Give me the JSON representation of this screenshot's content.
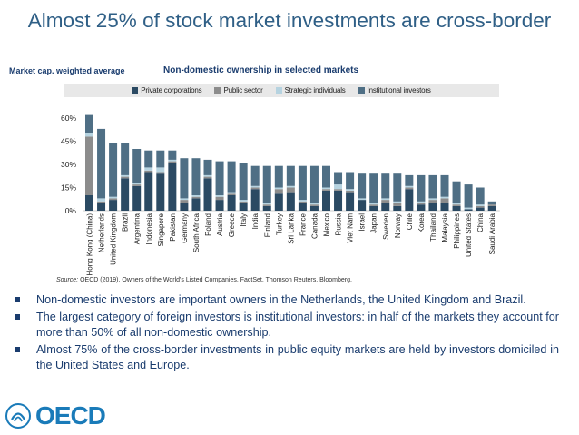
{
  "title": "Almost 25% of stock market investments are cross-border",
  "chart_subtitle": "Market cap. weighted average",
  "source_label": "Source:",
  "source_text": "OECD (2019), Owners of the World's Listed Companies, FactSet, Thomson Reuters, Bloomberg.",
  "bullets": [
    "Non-domestic investors are important owners in the Netherlands, the United Kingdom and Brazil.",
    "The largest category of foreign investors is institutional investors: in half of the markets they account for more than 50% of all non-domestic ownership.",
    "Almost 75% of the cross-border investments in public equity markets are held by investors domiciled in the United States and Europe."
  ],
  "logo_text": "OECD",
  "colors": {
    "title": "#2f5f86",
    "text": "#1a3c6e",
    "private": "#2b4a63",
    "public": "#8c8c8c",
    "strategic": "#b6d3e0",
    "institutional": "#4f6f85"
  },
  "chart_data": {
    "type": "bar",
    "stacked": true,
    "title": "Non-domestic ownership in selected markets",
    "ylim": [
      0,
      60
    ],
    "yticks": [
      0,
      15,
      30,
      45,
      60
    ],
    "ytick_labels": [
      "0%",
      "15%",
      "30%",
      "45%",
      "60%"
    ],
    "grid": false,
    "legend_position": "top",
    "categories": [
      "Hong Kong (China)",
      "Netherlands",
      "United Kingdom",
      "Brazil",
      "Argentina",
      "Indonesia",
      "Singapore",
      "Pakistan",
      "Germany",
      "South Africa",
      "Poland",
      "Austria",
      "Greece",
      "Italy",
      "India",
      "Finland",
      "Turkey",
      "Sri Lanka",
      "France",
      "Canada",
      "Mexico",
      "Russia",
      "Viet Nam",
      "Israel",
      "Japan",
      "Sweden",
      "Norway",
      "Chile",
      "Korea",
      "Thailand",
      "Malaysia",
      "Philippines",
      "United States",
      "China",
      "Saudi Arabia"
    ],
    "series": [
      {
        "name": "Private corporations",
        "color": "#2b4a63",
        "values": [
          10,
          5,
          7,
          21,
          16,
          25,
          24,
          31,
          5,
          8,
          21,
          7,
          10,
          5,
          14,
          3,
          11,
          12,
          5,
          3,
          13,
          13,
          12,
          7,
          3,
          5,
          3,
          14,
          4,
          5,
          5,
          3,
          1,
          2,
          3
        ]
      },
      {
        "name": "Public sector",
        "color": "#8c8c8c",
        "values": [
          38,
          1,
          1,
          1,
          1,
          1,
          1,
          1,
          2,
          1,
          1,
          2,
          1,
          1,
          1,
          1,
          3,
          3,
          1,
          1,
          1,
          1,
          1,
          0,
          1,
          2,
          2,
          1,
          1,
          2,
          3,
          1,
          0,
          1,
          1
        ]
      },
      {
        "name": "Strategic individuals",
        "color": "#b6d3e0",
        "values": [
          2,
          2,
          1,
          1,
          1,
          2,
          3,
          1,
          1,
          1,
          1,
          1,
          1,
          1,
          1,
          1,
          1,
          1,
          1,
          1,
          1,
          3,
          1,
          1,
          1,
          1,
          1,
          1,
          1,
          1,
          1,
          1,
          1,
          1,
          0
        ]
      },
      {
        "name": "Institutional investors",
        "color": "#4f6f85",
        "values": [
          12,
          45,
          35,
          21,
          22,
          11,
          11,
          6,
          26,
          24,
          10,
          22,
          20,
          24,
          13,
          24,
          14,
          13,
          22,
          24,
          14,
          8,
          11,
          16,
          19,
          16,
          18,
          7,
          17,
          15,
          14,
          14,
          15,
          11,
          2
        ]
      }
    ]
  }
}
